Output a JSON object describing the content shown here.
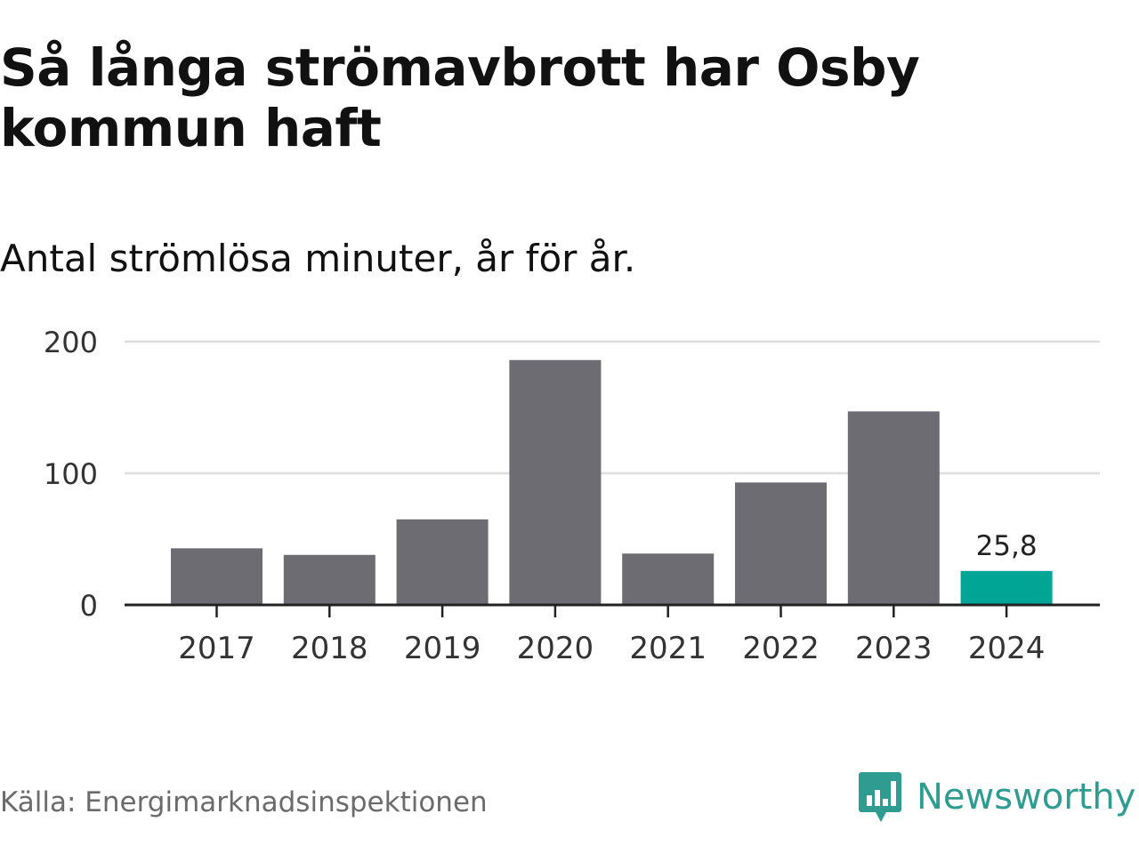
{
  "title": "Så långa strömavbrott har Osby kommun haft",
  "subtitle": "Antal strömlösa minuter, år för år.",
  "source": "Källa: Energimarknadsinspektionen",
  "brand": "Newsworthy",
  "colors": {
    "bar": "#6d6c73",
    "highlight": "#00a596",
    "grid": "#dddddd",
    "axis": "#222222",
    "brand": "#2e9c90"
  },
  "chart_data": {
    "type": "bar",
    "categories": [
      "2017",
      "2018",
      "2019",
      "2020",
      "2021",
      "2022",
      "2023",
      "2024"
    ],
    "values": [
      43,
      38,
      65,
      186,
      39,
      93,
      147,
      25.8
    ],
    "highlight_index": 7,
    "data_labels": [
      {
        "index": 7,
        "text": "25,8"
      }
    ],
    "yticks": [
      0,
      100,
      200
    ],
    "ylim": [
      0,
      200
    ],
    "xlabel": "",
    "ylabel": "",
    "grid": true
  }
}
